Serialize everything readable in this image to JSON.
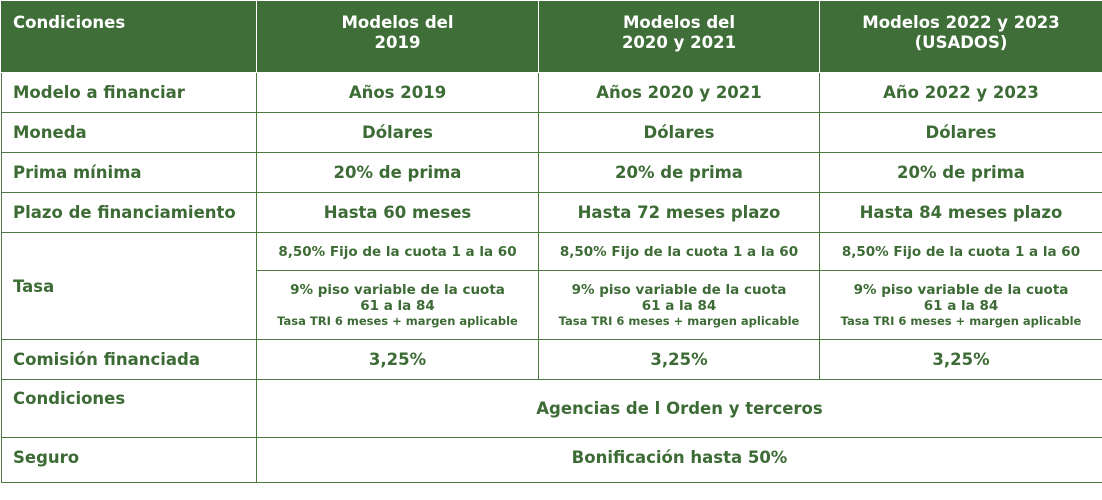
{
  "header": {
    "col0": "Condiciones",
    "col1_line1": "Modelos del",
    "col1_line2": "2019",
    "col2_line1": "Modelos del",
    "col2_line2": "2020 y 2021",
    "col3_line1": "Modelos 2022 y 2023",
    "col3_line2": "(USADOS)"
  },
  "rows": {
    "modelo": {
      "label": "Modelo a financiar",
      "v1": "Años 2019",
      "v2": "Años 2020 y 2021",
      "v3": "Año 2022 y 2023"
    },
    "moneda": {
      "label": "Moneda",
      "v1": "Dólares",
      "v2": "Dólares",
      "v3": "Dólares"
    },
    "prima": {
      "label": "Prima mínima",
      "v1": "20% de prima",
      "v2": "20% de prima",
      "v3": "20% de prima"
    },
    "plazo": {
      "label": "Plazo de financiamiento",
      "v1": "Hasta 60 meses",
      "v2": "Hasta 72 meses plazo",
      "v3": "Hasta 84 meses plazo"
    },
    "tasa": {
      "label": "Tasa",
      "fijo": "8,50% Fijo de la cuota 1 a la 60",
      "variable_line1": "9% piso variable de la cuota",
      "variable_line2": "61 a la 84",
      "variable_note": "Tasa TRI 6 meses + margen aplicable"
    },
    "comision": {
      "label": "Comisión financiada",
      "v1": "3,25%",
      "v2": "3,25%",
      "v3": "3,25%"
    },
    "condiciones": {
      "label": "Condiciones",
      "value": "Agencias de l Orden y terceros"
    },
    "seguro": {
      "label": "Seguro",
      "value": "Bonificación hasta 50%"
    }
  },
  "colors": {
    "header_bg": "#3f6e38",
    "text": "#3d6b35",
    "border": "#4a7a3f"
  }
}
